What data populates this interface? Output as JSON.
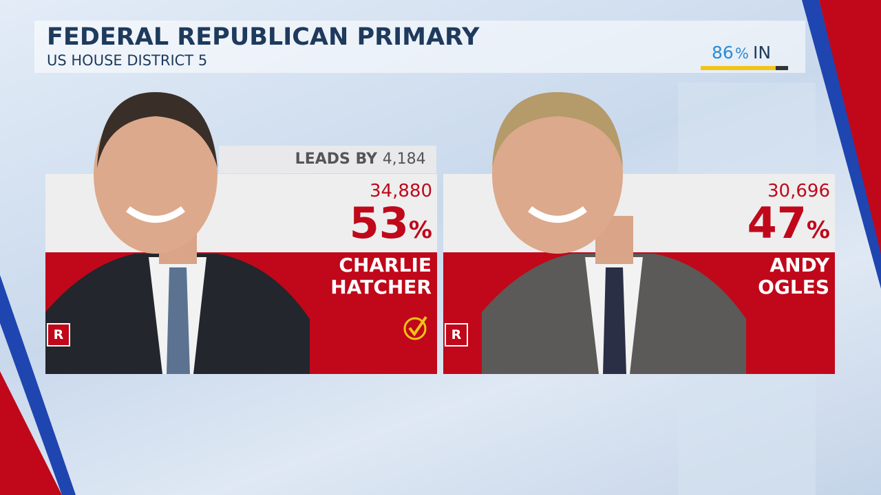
{
  "header": {
    "title": "FEDERAL REPUBLICAN PRIMARY",
    "subtitle": "US HOUSE DISTRICT 5"
  },
  "reporting": {
    "percent_in": 86,
    "percent_sign": "%",
    "label": "IN"
  },
  "lead": {
    "label": "LEADS BY",
    "margin": "4,184"
  },
  "candidates": [
    {
      "first_name": "CHARLIE",
      "last_name": "HATCHER",
      "votes": "34,880",
      "percent": 53,
      "percent_sign": "%",
      "party": "R"
    },
    {
      "first_name": "ANDY",
      "last_name": "OGLES",
      "votes": "30,696",
      "percent": 47,
      "percent_sign": "%",
      "party": "R"
    }
  ]
}
